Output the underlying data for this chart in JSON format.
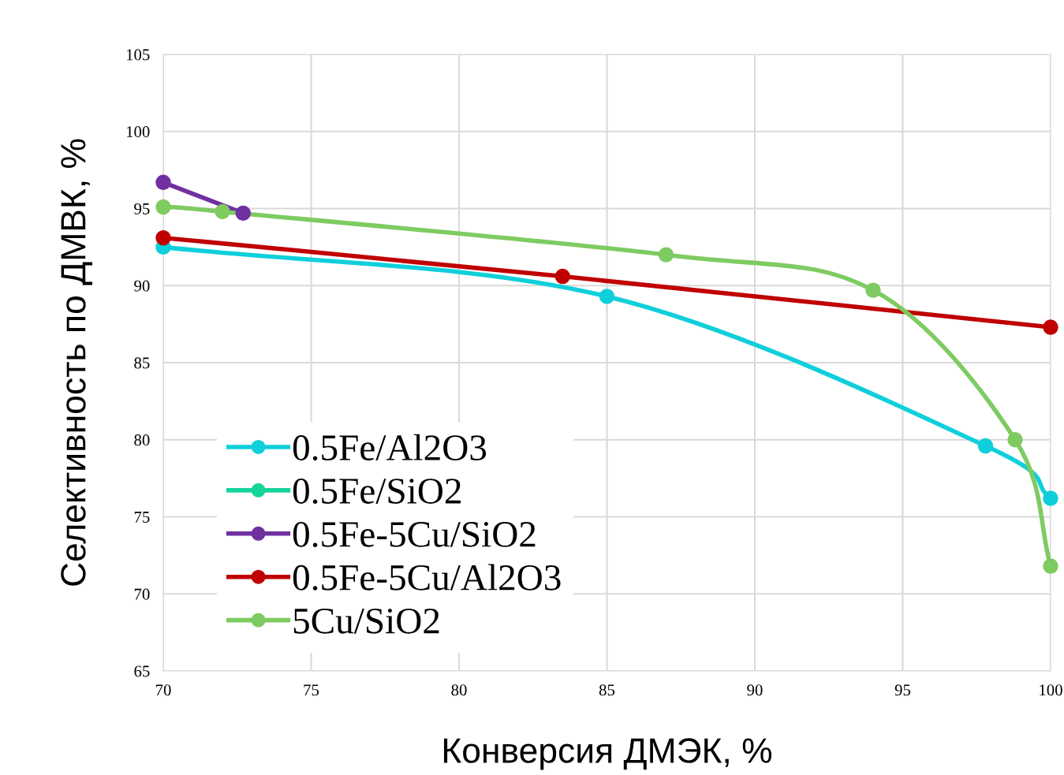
{
  "chart_data": {
    "type": "line",
    "xlabel": "Конверсия ДМЭК, %",
    "ylabel": "Селективность по ДМВК, %",
    "xlim": [
      70,
      100
    ],
    "xticks": [
      70,
      75,
      80,
      85,
      90,
      95,
      100
    ],
    "ylim": [
      65,
      105
    ],
    "yticks": [
      65,
      70,
      75,
      80,
      85,
      90,
      95,
      100,
      105
    ],
    "grid": true,
    "legend": "bottom left",
    "marker": "circle",
    "series": [
      {
        "name": "0.5Fe/Al2O3",
        "color": "#0fcfdb",
        "x": [
          70,
          85,
          97.8,
          100
        ],
        "values": [
          92.5,
          89.3,
          79.6,
          76.2
        ]
      },
      {
        "name": "0.5Fe/SiO2",
        "color": "#17d49c"
      },
      {
        "name": "0.5Fe-5Cu/SiO2",
        "color": "#7030a0",
        "x": [
          70,
          72.7
        ],
        "values": [
          96.7,
          94.7
        ]
      },
      {
        "name": "0.5Fe-5Cu/Al2O3",
        "color": "#c00000",
        "x": [
          70,
          83.5,
          100
        ],
        "values": [
          93.1,
          90.6,
          87.3
        ]
      },
      {
        "name": "5Cu/SiO2",
        "color": "#7ecb62",
        "x": [
          70,
          72,
          87,
          94,
          98.8,
          100
        ],
        "values": [
          95.1,
          94.8,
          92.0,
          89.7,
          80.0,
          71.8
        ]
      }
    ]
  }
}
